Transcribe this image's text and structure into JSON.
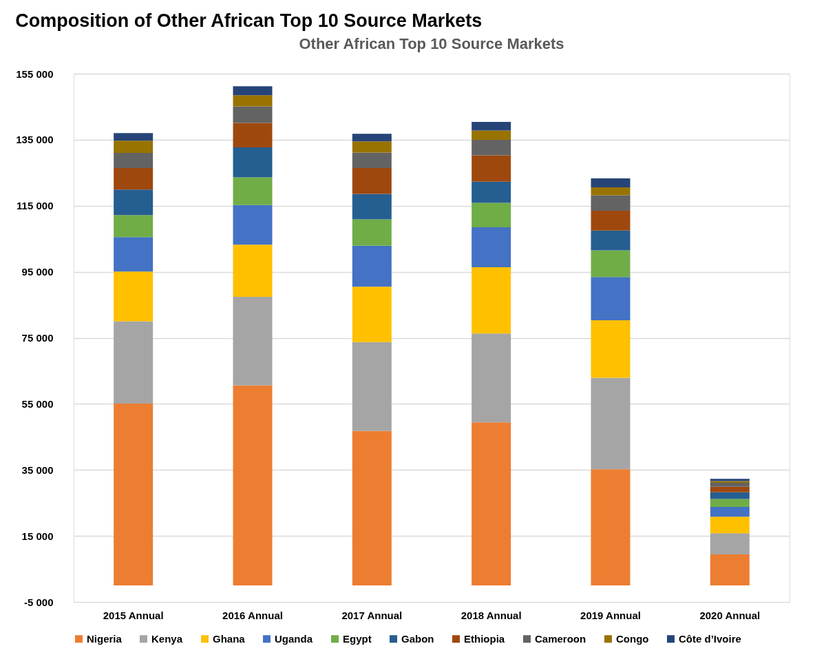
{
  "chart_data": {
    "type": "bar",
    "title": "Composition of Other African Top 10 Source Markets",
    "subtitle": "Other African Top 10 Source Markets",
    "categories": [
      "2015 Annual",
      "2016 Annual",
      "2017 Annual",
      "2018 Annual",
      "2019 Annual",
      "2020 Annual"
    ],
    "stacked": true,
    "series": [
      {
        "name": "Nigeria",
        "color": "#ed7d31",
        "values": [
          55100,
          60600,
          46800,
          49400,
          35200,
          9400
        ]
      },
      {
        "name": "Kenya",
        "color": "#a5a5a5",
        "values": [
          24900,
          26800,
          26900,
          26900,
          27700,
          6400
        ]
      },
      {
        "name": "Ghana",
        "color": "#ffc000",
        "values": [
          15100,
          15800,
          16800,
          20100,
          17400,
          5000
        ]
      },
      {
        "name": "Uganda",
        "color": "#4472c4",
        "values": [
          10400,
          12000,
          12400,
          12100,
          13100,
          3000
        ]
      },
      {
        "name": "Egypt",
        "color": "#70ad47",
        "values": [
          6700,
          8400,
          8000,
          7400,
          8100,
          2400
        ]
      },
      {
        "name": "Gabon",
        "color": "#255e91",
        "values": [
          7700,
          9100,
          7700,
          6400,
          6000,
          2000
        ]
      },
      {
        "name": "Ethiopia",
        "color": "#9e480e",
        "values": [
          6500,
          7400,
          7800,
          8000,
          6000,
          1700
        ]
      },
      {
        "name": "Cameroon",
        "color": "#636363",
        "values": [
          4600,
          5000,
          4700,
          4700,
          4700,
          1200
        ]
      },
      {
        "name": "Congo",
        "color": "#997300",
        "values": [
          3700,
          3400,
          3400,
          2800,
          2400,
          500
        ]
      },
      {
        "name": "Côte d’Ivoire",
        "color": "#264478",
        "values": [
          2300,
          2700,
          2300,
          2600,
          2700,
          700
        ]
      }
    ],
    "ylim": [
      -5000,
      155000
    ],
    "yticks": [
      {
        "value": -5000,
        "label": "-5 000"
      },
      {
        "value": 15000,
        "label": "15 000"
      },
      {
        "value": 35000,
        "label": "35 000"
      },
      {
        "value": 55000,
        "label": "55 000"
      },
      {
        "value": 75000,
        "label": "75 000"
      },
      {
        "value": 95000,
        "label": "95 000"
      },
      {
        "value": 115000,
        "label": "115 000"
      },
      {
        "value": 135000,
        "label": "135 000"
      },
      {
        "value": 155000,
        "label": "155 000"
      }
    ],
    "grid": "y",
    "legend": "bottom"
  }
}
